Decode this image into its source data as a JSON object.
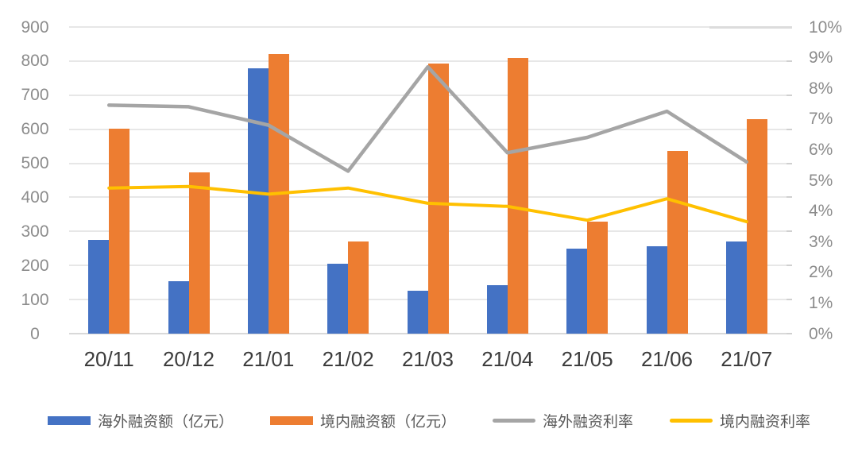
{
  "chart_data": {
    "type": "bar",
    "subtype": "dual-axis-combo",
    "title": "",
    "xlabel": "",
    "ylabel_left": "",
    "ylabel_right": "",
    "grid": true,
    "legend_position": "bottom",
    "categories": [
      "20/11",
      "20/12",
      "21/01",
      "21/02",
      "21/03",
      "21/04",
      "21/05",
      "21/06",
      "21/07"
    ],
    "series": [
      {
        "name": "海外融资额（亿元）",
        "type": "bar",
        "axis": "left",
        "color": "#4472C4",
        "values": [
          276,
          154,
          779,
          206,
          126,
          142,
          250,
          257,
          271
        ]
      },
      {
        "name": "境内融资额（亿元）",
        "type": "bar",
        "axis": "left",
        "color": "#ED7D31",
        "values": [
          601,
          474,
          820,
          271,
          793,
          810,
          328,
          536,
          629
        ]
      },
      {
        "name": "海外融资利率",
        "type": "line",
        "axis": "right",
        "color": "#A5A5A5",
        "values": [
          7.45,
          7.4,
          6.8,
          5.3,
          8.7,
          5.9,
          6.4,
          7.25,
          5.6
        ],
        "unit": "%"
      },
      {
        "name": "境内融资利率",
        "type": "line",
        "axis": "right",
        "color": "#FFC000",
        "values": [
          4.75,
          4.8,
          4.55,
          4.75,
          4.25,
          4.15,
          3.7,
          4.4,
          3.65
        ],
        "unit": "%"
      }
    ],
    "left_axis": {
      "min": 0,
      "max": 900,
      "step": 100,
      "tick_labels": [
        "900",
        "800",
        "700",
        "600",
        "500",
        "400",
        "300",
        "200",
        "100",
        "0"
      ]
    },
    "right_axis": {
      "min": 0,
      "max": 10,
      "step": 1,
      "tick_labels": [
        "10%",
        "9%",
        "8%",
        "7%",
        "6%",
        "5%",
        "4%",
        "3%",
        "2%",
        "1%",
        "0%"
      ]
    }
  }
}
